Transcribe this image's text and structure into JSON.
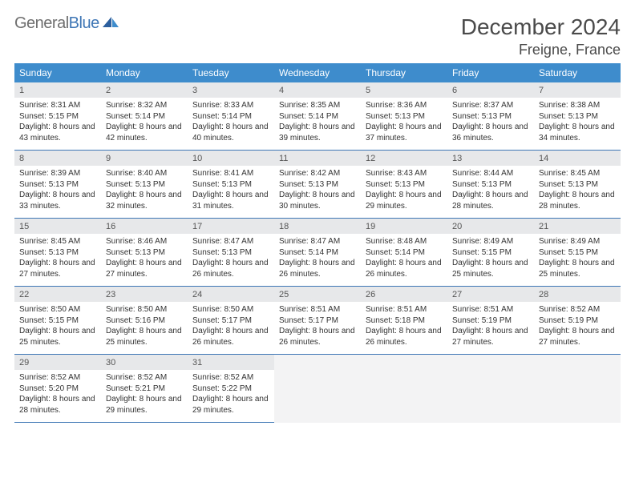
{
  "logo": {
    "gray": "General",
    "blue": "Blue"
  },
  "title": "December 2024",
  "location": "Freigne, France",
  "colors": {
    "header_bg": "#3e8ccc",
    "header_text": "#ffffff",
    "rule": "#3e76b5",
    "daynum_bg": "#e7e8ea",
    "body_text": "#333333",
    "logo_gray": "#6f6f6f",
    "logo_blue": "#3e76b5"
  },
  "day_headers": [
    "Sunday",
    "Monday",
    "Tuesday",
    "Wednesday",
    "Thursday",
    "Friday",
    "Saturday"
  ],
  "weeks": [
    [
      {
        "n": "1",
        "sr": "8:31 AM",
        "ss": "5:15 PM",
        "dl": "8 hours and 43 minutes."
      },
      {
        "n": "2",
        "sr": "8:32 AM",
        "ss": "5:14 PM",
        "dl": "8 hours and 42 minutes."
      },
      {
        "n": "3",
        "sr": "8:33 AM",
        "ss": "5:14 PM",
        "dl": "8 hours and 40 minutes."
      },
      {
        "n": "4",
        "sr": "8:35 AM",
        "ss": "5:14 PM",
        "dl": "8 hours and 39 minutes."
      },
      {
        "n": "5",
        "sr": "8:36 AM",
        "ss": "5:13 PM",
        "dl": "8 hours and 37 minutes."
      },
      {
        "n": "6",
        "sr": "8:37 AM",
        "ss": "5:13 PM",
        "dl": "8 hours and 36 minutes."
      },
      {
        "n": "7",
        "sr": "8:38 AM",
        "ss": "5:13 PM",
        "dl": "8 hours and 34 minutes."
      }
    ],
    [
      {
        "n": "8",
        "sr": "8:39 AM",
        "ss": "5:13 PM",
        "dl": "8 hours and 33 minutes."
      },
      {
        "n": "9",
        "sr": "8:40 AM",
        "ss": "5:13 PM",
        "dl": "8 hours and 32 minutes."
      },
      {
        "n": "10",
        "sr": "8:41 AM",
        "ss": "5:13 PM",
        "dl": "8 hours and 31 minutes."
      },
      {
        "n": "11",
        "sr": "8:42 AM",
        "ss": "5:13 PM",
        "dl": "8 hours and 30 minutes."
      },
      {
        "n": "12",
        "sr": "8:43 AM",
        "ss": "5:13 PM",
        "dl": "8 hours and 29 minutes."
      },
      {
        "n": "13",
        "sr": "8:44 AM",
        "ss": "5:13 PM",
        "dl": "8 hours and 28 minutes."
      },
      {
        "n": "14",
        "sr": "8:45 AM",
        "ss": "5:13 PM",
        "dl": "8 hours and 28 minutes."
      }
    ],
    [
      {
        "n": "15",
        "sr": "8:45 AM",
        "ss": "5:13 PM",
        "dl": "8 hours and 27 minutes."
      },
      {
        "n": "16",
        "sr": "8:46 AM",
        "ss": "5:13 PM",
        "dl": "8 hours and 27 minutes."
      },
      {
        "n": "17",
        "sr": "8:47 AM",
        "ss": "5:13 PM",
        "dl": "8 hours and 26 minutes."
      },
      {
        "n": "18",
        "sr": "8:47 AM",
        "ss": "5:14 PM",
        "dl": "8 hours and 26 minutes."
      },
      {
        "n": "19",
        "sr": "8:48 AM",
        "ss": "5:14 PM",
        "dl": "8 hours and 26 minutes."
      },
      {
        "n": "20",
        "sr": "8:49 AM",
        "ss": "5:15 PM",
        "dl": "8 hours and 25 minutes."
      },
      {
        "n": "21",
        "sr": "8:49 AM",
        "ss": "5:15 PM",
        "dl": "8 hours and 25 minutes."
      }
    ],
    [
      {
        "n": "22",
        "sr": "8:50 AM",
        "ss": "5:15 PM",
        "dl": "8 hours and 25 minutes."
      },
      {
        "n": "23",
        "sr": "8:50 AM",
        "ss": "5:16 PM",
        "dl": "8 hours and 25 minutes."
      },
      {
        "n": "24",
        "sr": "8:50 AM",
        "ss": "5:17 PM",
        "dl": "8 hours and 26 minutes."
      },
      {
        "n": "25",
        "sr": "8:51 AM",
        "ss": "5:17 PM",
        "dl": "8 hours and 26 minutes."
      },
      {
        "n": "26",
        "sr": "8:51 AM",
        "ss": "5:18 PM",
        "dl": "8 hours and 26 minutes."
      },
      {
        "n": "27",
        "sr": "8:51 AM",
        "ss": "5:19 PM",
        "dl": "8 hours and 27 minutes."
      },
      {
        "n": "28",
        "sr": "8:52 AM",
        "ss": "5:19 PM",
        "dl": "8 hours and 27 minutes."
      }
    ],
    [
      {
        "n": "29",
        "sr": "8:52 AM",
        "ss": "5:20 PM",
        "dl": "8 hours and 28 minutes."
      },
      {
        "n": "30",
        "sr": "8:52 AM",
        "ss": "5:21 PM",
        "dl": "8 hours and 29 minutes."
      },
      {
        "n": "31",
        "sr": "8:52 AM",
        "ss": "5:22 PM",
        "dl": "8 hours and 29 minutes."
      },
      null,
      null,
      null,
      null
    ]
  ],
  "labels": {
    "sunrise": "Sunrise: ",
    "sunset": "Sunset: ",
    "daylight": "Daylight: "
  }
}
